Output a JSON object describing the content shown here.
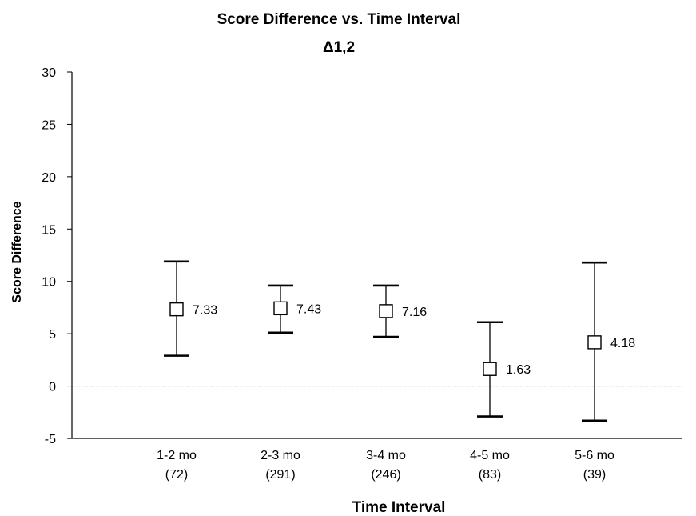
{
  "chart_data": {
    "type": "scatter",
    "title": "Score Difference vs. Time Interval",
    "subtitle": "Δ1,2",
    "xlabel": "Time Interval",
    "ylabel": "Score Difference",
    "ylim": [
      -5,
      30
    ],
    "yticks": [
      30,
      25,
      20,
      15,
      10,
      5,
      0,
      -5
    ],
    "categories": [
      {
        "label": "1-2 mo",
        "sublabel": "(72)"
      },
      {
        "label": "2-3 mo",
        "sublabel": "(291)"
      },
      {
        "label": "3-4 mo",
        "sublabel": "(246)"
      },
      {
        "label": "4-5 mo",
        "sublabel": "(83)"
      },
      {
        "label": "5-6 mo",
        "sublabel": "(39)"
      }
    ],
    "series": [
      {
        "points": [
          {
            "value": 7.33,
            "label": "7.33",
            "low": 2.9,
            "high": 11.9
          },
          {
            "value": 7.43,
            "label": "7.43",
            "low": 5.1,
            "high": 9.6
          },
          {
            "value": 7.16,
            "label": "7.16",
            "low": 4.7,
            "high": 9.6
          },
          {
            "value": 1.63,
            "label": "1.63",
            "low": -2.9,
            "high": 6.1
          },
          {
            "value": 4.18,
            "label": "4.18",
            "low": -3.3,
            "high": 11.8
          }
        ]
      }
    ],
    "reference_line": {
      "value": 0,
      "style": "dotted"
    },
    "grid": false,
    "legend": "none",
    "marker": "open-square"
  }
}
